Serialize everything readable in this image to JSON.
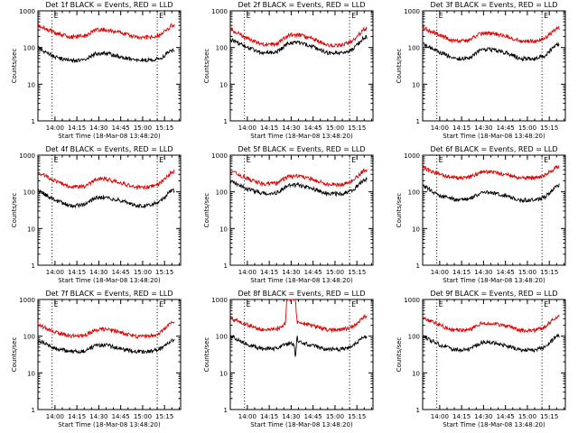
{
  "figure": {
    "background": "#ffffff",
    "colors": {
      "events": "#000000",
      "lld": "#e00000",
      "axis": "#000000"
    }
  },
  "chart_data": [
    {
      "type": "line",
      "title": "Det 1f BLACK = Events, RED = LLD",
      "xlabel": "Start Time (18-Mar-08 13:48:20)",
      "ylabel": "Counts/sec",
      "yscale": "log",
      "ylim": [
        1,
        1000
      ],
      "yticks": [
        "1",
        "10",
        "100",
        "1000"
      ],
      "xticks": [
        "14:00",
        "14:15",
        "14:30",
        "14:45",
        "15:00",
        "15:15"
      ],
      "markers": [
        "E",
        "E"
      ],
      "dotted_vlines": [
        "13:58",
        "15:10"
      ],
      "series": [
        {
          "legend_word": "BLACK = Events",
          "color": "#000000",
          "x": [
            "13:48",
            "14:00",
            "14:10",
            "14:20",
            "14:28",
            "14:35",
            "14:45",
            "14:55",
            "15:05",
            "15:12",
            "15:20"
          ],
          "y": [
            100,
            55,
            44,
            45,
            68,
            70,
            55,
            45,
            45,
            50,
            85
          ]
        },
        {
          "legend_word": "RED = LLD",
          "color": "#e00000",
          "x": [
            "13:48",
            "14:00",
            "14:10",
            "14:20",
            "14:28",
            "14:35",
            "14:45",
            "14:55",
            "15:05",
            "15:12",
            "15:20"
          ],
          "y": [
            400,
            250,
            195,
            205,
            300,
            310,
            250,
            190,
            190,
            220,
            400
          ]
        }
      ]
    },
    {
      "type": "line",
      "title": "Det 2f BLACK = Events, RED = LLD",
      "xlabel": "Start Time (18-Mar-08 13:48:20)",
      "ylabel": "Counts/sec",
      "yscale": "log",
      "ylim": [
        1,
        1000
      ],
      "yticks": [
        "1",
        "10",
        "100",
        "1000"
      ],
      "xticks": [
        "14:00",
        "14:15",
        "14:30",
        "14:45",
        "15:00",
        "15:15"
      ],
      "markers": [
        "E",
        "E"
      ],
      "dotted_vlines": [
        "13:58",
        "15:10"
      ],
      "series": [
        {
          "legend_word": "BLACK = Events",
          "color": "#000000",
          "x": [
            "13:48",
            "14:00",
            "14:10",
            "14:20",
            "14:28",
            "14:35",
            "14:45",
            "14:55",
            "15:05",
            "15:12",
            "15:20"
          ],
          "y": [
            170,
            100,
            70,
            75,
            130,
            135,
            105,
            70,
            70,
            90,
            190
          ]
        },
        {
          "legend_word": "RED = LLD",
          "color": "#e00000",
          "x": [
            "13:48",
            "14:00",
            "14:10",
            "14:20",
            "14:28",
            "14:35",
            "14:45",
            "14:55",
            "15:05",
            "15:12",
            "15:20"
          ],
          "y": [
            330,
            180,
            120,
            125,
            220,
            225,
            170,
            115,
            115,
            150,
            320
          ]
        }
      ]
    },
    {
      "type": "line",
      "title": "Det 3f BLACK = Events, RED = LLD",
      "xlabel": "Start Time (18-Mar-08 13:48:20)",
      "ylabel": "Counts/sec",
      "yscale": "log",
      "ylim": [
        1,
        1000
      ],
      "yticks": [
        "1",
        "10",
        "100",
        "1000"
      ],
      "xticks": [
        "14:00",
        "14:15",
        "14:30",
        "14:45",
        "15:00",
        "15:15"
      ],
      "markers": [
        "E",
        "E"
      ],
      "dotted_vlines": [
        "13:58",
        "15:10"
      ],
      "series": [
        {
          "legend_word": "BLACK = Events",
          "color": "#000000",
          "x": [
            "13:48",
            "14:00",
            "14:10",
            "14:20",
            "14:28",
            "14:35",
            "14:45",
            "14:55",
            "15:05",
            "15:12",
            "15:20"
          ],
          "y": [
            130,
            75,
            50,
            52,
            85,
            88,
            72,
            50,
            48,
            60,
            120
          ]
        },
        {
          "legend_word": "RED = LLD",
          "color": "#e00000",
          "x": [
            "13:48",
            "14:00",
            "14:10",
            "14:20",
            "14:28",
            "14:35",
            "14:45",
            "14:55",
            "15:05",
            "15:12",
            "15:20"
          ],
          "y": [
            350,
            220,
            150,
            155,
            240,
            245,
            210,
            150,
            145,
            180,
            330
          ]
        }
      ]
    },
    {
      "type": "line",
      "title": "Det 4f BLACK = Events, RED = LLD",
      "xlabel": "Start Time (18-Mar-08 13:48:20)",
      "ylabel": "Counts/sec",
      "yscale": "log",
      "ylim": [
        1,
        1000
      ],
      "yticks": [
        "1",
        "10",
        "100",
        "1000"
      ],
      "xticks": [
        "14:00",
        "14:15",
        "14:30",
        "14:45",
        "15:00",
        "15:15"
      ],
      "markers": [
        "E",
        "E"
      ],
      "dotted_vlines": [
        "13:58",
        "15:10"
      ],
      "series": [
        {
          "legend_word": "BLACK = Events",
          "color": "#000000",
          "x": [
            "13:48",
            "14:00",
            "14:10",
            "14:20",
            "14:28",
            "14:35",
            "14:45",
            "14:55",
            "15:05",
            "15:12",
            "15:20"
          ],
          "y": [
            110,
            60,
            42,
            44,
            70,
            72,
            58,
            42,
            42,
            55,
            110
          ]
        },
        {
          "legend_word": "RED = LLD",
          "color": "#e00000",
          "x": [
            "13:48",
            "14:00",
            "14:10",
            "14:20",
            "14:28",
            "14:35",
            "14:45",
            "14:55",
            "15:05",
            "15:12",
            "15:20"
          ],
          "y": [
            340,
            200,
            135,
            140,
            220,
            225,
            180,
            135,
            135,
            170,
            350
          ]
        }
      ]
    },
    {
      "type": "line",
      "title": "Det 5f BLACK = Events, RED = LLD",
      "xlabel": "Start Time (18-Mar-08 13:48:20)",
      "ylabel": "Counts/sec",
      "yscale": "log",
      "ylim": [
        1,
        1000
      ],
      "yticks": [
        "1",
        "10",
        "100",
        "1000"
      ],
      "xticks": [
        "14:00",
        "14:15",
        "14:30",
        "14:45",
        "15:00",
        "15:15"
      ],
      "markers": [
        "E",
        "E"
      ],
      "dotted_vlines": [
        "13:58",
        "15:10"
      ],
      "series": [
        {
          "legend_word": "BLACK = Events",
          "color": "#000000",
          "x": [
            "13:48",
            "14:00",
            "14:10",
            "14:20",
            "14:28",
            "14:35",
            "14:45",
            "14:55",
            "15:05",
            "15:12",
            "15:20"
          ],
          "y": [
            200,
            120,
            90,
            92,
            150,
            155,
            120,
            88,
            88,
            110,
            220
          ]
        },
        {
          "legend_word": "RED = LLD",
          "color": "#e00000",
          "x": [
            "13:48",
            "14:00",
            "14:10",
            "14:20",
            "14:28",
            "14:35",
            "14:45",
            "14:55",
            "15:05",
            "15:12",
            "15:20"
          ],
          "y": [
            380,
            230,
            165,
            170,
            260,
            265,
            220,
            160,
            160,
            200,
            400
          ]
        }
      ]
    },
    {
      "type": "line",
      "title": "Det 6f BLACK = Events, RED = LLD",
      "xlabel": "Start Time (18-Mar-08 13:48:20)",
      "ylabel": "Counts/sec",
      "yscale": "log",
      "ylim": [
        1,
        1000
      ],
      "yticks": [
        "1",
        "10",
        "100",
        "1000"
      ],
      "xticks": [
        "14:00",
        "14:15",
        "14:30",
        "14:45",
        "15:00",
        "15:15"
      ],
      "markers": [
        "E",
        "E"
      ],
      "dotted_vlines": [
        "13:58",
        "15:10"
      ],
      "series": [
        {
          "legend_word": "BLACK = Events",
          "color": "#000000",
          "x": [
            "13:48",
            "14:00",
            "14:10",
            "14:20",
            "14:28",
            "14:35",
            "14:45",
            "14:55",
            "15:05",
            "15:12",
            "15:20"
          ],
          "y": [
            150,
            80,
            62,
            63,
            95,
            97,
            78,
            60,
            60,
            72,
            150
          ]
        },
        {
          "legend_word": "RED = LLD",
          "color": "#e00000",
          "x": [
            "13:48",
            "14:00",
            "14:10",
            "14:20",
            "14:28",
            "14:35",
            "14:45",
            "14:55",
            "15:05",
            "15:12",
            "15:20"
          ],
          "y": [
            460,
            300,
            240,
            245,
            340,
            345,
            300,
            240,
            240,
            280,
            480
          ]
        }
      ]
    },
    {
      "type": "line",
      "title": "Det 7f BLACK = Events, RED = LLD",
      "xlabel": "Start Time (18-Mar-08 13:48:20)",
      "ylabel": "Counts/sec",
      "yscale": "log",
      "ylim": [
        1,
        1000
      ],
      "yticks": [
        "1",
        "10",
        "100",
        "1000"
      ],
      "xticks": [
        "14:00",
        "14:15",
        "14:30",
        "14:45",
        "15:00",
        "15:15"
      ],
      "markers": [
        "E",
        "E"
      ],
      "dotted_vlines": [
        "13:58",
        "15:10"
      ],
      "series": [
        {
          "legend_word": "BLACK = Events",
          "color": "#000000",
          "x": [
            "13:48",
            "14:00",
            "14:10",
            "14:20",
            "14:28",
            "14:35",
            "14:45",
            "14:55",
            "15:05",
            "15:12",
            "15:20"
          ],
          "y": [
            75,
            48,
            38,
            39,
            55,
            57,
            47,
            38,
            38,
            46,
            80
          ]
        },
        {
          "legend_word": "RED = LLD",
          "color": "#e00000",
          "x": [
            "13:48",
            "14:00",
            "14:10",
            "14:20",
            "14:28",
            "14:35",
            "14:45",
            "14:55",
            "15:05",
            "15:12",
            "15:20"
          ],
          "y": [
            210,
            130,
            100,
            102,
            150,
            152,
            125,
            98,
            98,
            125,
            240
          ]
        }
      ]
    },
    {
      "type": "line",
      "title": "Det 8f BLACK = Events, RED = LLD",
      "xlabel": "Start Time (18-Mar-08 13:48:20)",
      "ylabel": "Counts/sec",
      "yscale": "log",
      "ylim": [
        1,
        1000
      ],
      "yticks": [
        "1",
        "10",
        "100",
        "1000"
      ],
      "xticks": [
        "14:00",
        "14:15",
        "14:30",
        "14:45",
        "15:00",
        "15:15"
      ],
      "markers": [
        "E",
        "E"
      ],
      "dotted_vlines": [
        "13:58",
        "15:10"
      ],
      "series": [
        {
          "legend_word": "BLACK = Events",
          "color": "#000000",
          "x": [
            "13:48",
            "14:00",
            "14:10",
            "14:20",
            "14:28",
            "14:32",
            "14:33",
            "14:34",
            "14:35",
            "14:45",
            "14:55",
            "15:05",
            "15:12",
            "15:20"
          ],
          "y": [
            105,
            60,
            45,
            46,
            65,
            60,
            25,
            100,
            70,
            55,
            44,
            44,
            52,
            100
          ]
        },
        {
          "legend_word": "RED = LLD",
          "color": "#e00000",
          "x": [
            "13:48",
            "14:00",
            "14:10",
            "14:20",
            "14:26",
            "14:27",
            "14:28",
            "14:32",
            "14:33",
            "14:34",
            "14:35",
            "14:45",
            "14:55",
            "15:05",
            "15:12",
            "15:20"
          ],
          "y": [
            320,
            200,
            150,
            155,
            210,
            1000,
            1000,
            1000,
            1000,
            240,
            230,
            190,
            150,
            150,
            180,
            340
          ]
        }
      ]
    },
    {
      "type": "line",
      "title": "Det 9f BLACK = Events, RED = LLD",
      "xlabel": "Start Time (18-Mar-08 13:48:20)",
      "ylabel": "Counts/sec",
      "yscale": "log",
      "ylim": [
        1,
        1000
      ],
      "yticks": [
        "1",
        "10",
        "100",
        "1000"
      ],
      "xticks": [
        "14:00",
        "14:15",
        "14:30",
        "14:45",
        "15:00",
        "15:15"
      ],
      "markers": [
        "E",
        "E"
      ],
      "dotted_vlines": [
        "13:58",
        "15:10"
      ],
      "series": [
        {
          "legend_word": "BLACK = Events",
          "color": "#000000",
          "x": [
            "13:48",
            "14:00",
            "14:10",
            "14:20",
            "14:28",
            "14:35",
            "14:45",
            "14:55",
            "15:05",
            "15:12",
            "15:20"
          ],
          "y": [
            100,
            58,
            42,
            43,
            65,
            67,
            55,
            42,
            42,
            52,
            100
          ]
        },
        {
          "legend_word": "RED = LLD",
          "color": "#e00000",
          "x": [
            "13:48",
            "14:00",
            "14:10",
            "14:20",
            "14:28",
            "14:35",
            "14:45",
            "14:55",
            "15:05",
            "15:12",
            "15:20"
          ],
          "y": [
            330,
            200,
            145,
            150,
            220,
            225,
            190,
            145,
            145,
            180,
            340
          ]
        }
      ]
    }
  ]
}
